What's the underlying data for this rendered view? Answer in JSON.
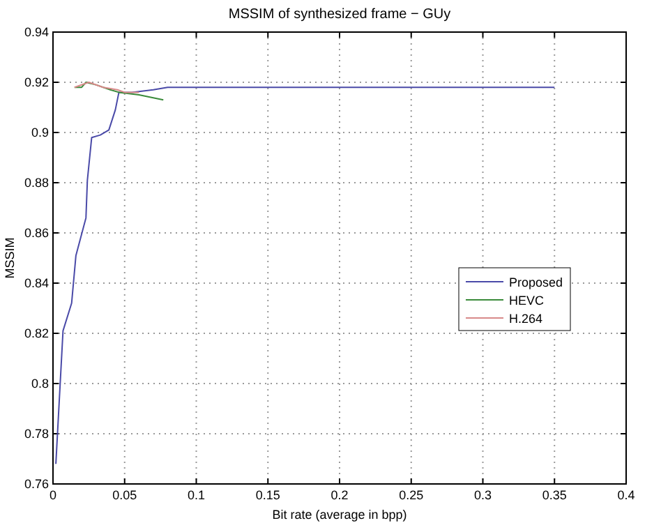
{
  "chart_data": {
    "type": "line",
    "title": "MSSIM of synthesized frame − GUy",
    "xlabel": "Bit rate (average in bpp)",
    "ylabel": "MSSIM",
    "xlim": [
      0,
      0.4
    ],
    "xticks": [
      0,
      0.05,
      0.1,
      0.15,
      0.2,
      0.25,
      0.3,
      0.35,
      0.4
    ],
    "ylim": [
      0.76,
      0.94
    ],
    "yticks": [
      0.76,
      0.78,
      0.8,
      0.82,
      0.84,
      0.86,
      0.88,
      0.9,
      0.92,
      0.94
    ],
    "grid": true,
    "legend": "right",
    "line_style": "solid",
    "series": [
      {
        "name": "Proposed",
        "color": "#4a4aa8",
        "x": [
          0.002,
          0.007,
          0.013,
          0.016,
          0.023,
          0.024,
          0.027,
          0.033,
          0.039,
          0.0435,
          0.046,
          0.055,
          0.07,
          0.08,
          0.1,
          0.2,
          0.35
        ],
        "values": [
          0.768,
          0.821,
          0.832,
          0.851,
          0.866,
          0.881,
          0.898,
          0.899,
          0.901,
          0.909,
          0.916,
          0.916,
          0.917,
          0.918,
          0.918,
          0.918,
          0.918
        ]
      },
      {
        "name": "HEVC",
        "color": "#3a8a3a",
        "x": [
          0.015,
          0.02,
          0.023,
          0.03,
          0.04,
          0.046,
          0.06,
          0.077
        ],
        "values": [
          0.918,
          0.918,
          0.92,
          0.919,
          0.917,
          0.916,
          0.915,
          0.913
        ]
      },
      {
        "name": "H.264",
        "color": "#d88a8a",
        "x": [
          0.015,
          0.025,
          0.035,
          0.045,
          0.05,
          0.06
        ],
        "values": [
          0.918,
          0.92,
          0.918,
          0.917,
          0.916,
          0.916
        ]
      }
    ]
  }
}
